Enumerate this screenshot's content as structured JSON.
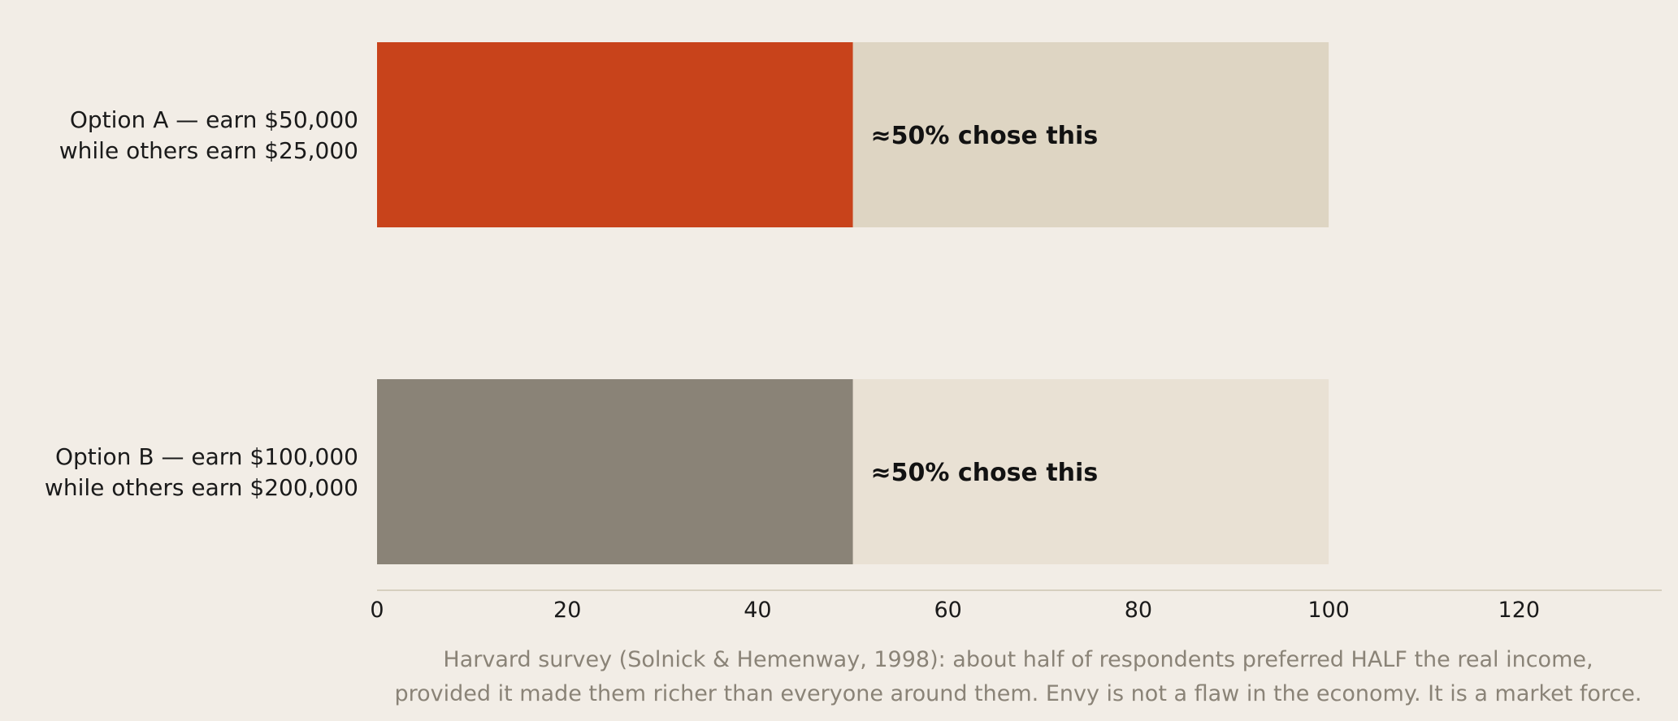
{
  "chart_data": {
    "type": "bar",
    "orientation": "horizontal",
    "categories": [
      [
        "Option A — earn $50,000",
        "while others earn $25,000"
      ],
      [
        "Option B — earn $100,000",
        "while others earn $200,000"
      ]
    ],
    "values": [
      50,
      50
    ],
    "background_values": [
      100,
      100
    ],
    "data_labels": [
      "≈50% chose this",
      "≈50% chose this"
    ],
    "colors": {
      "bar_fill": [
        "#c8431b",
        "#8a8377"
      ],
      "bar_background": [
        "#ded5c3",
        "#e9e1d4"
      ],
      "axis_line": "#d6cfbf",
      "page_background": "#f2ede6"
    },
    "xlim": [
      0,
      135
    ],
    "x_ticks": [
      0,
      20,
      40,
      60,
      80,
      100,
      120
    ],
    "grid": false,
    "caption": [
      "Harvard survey (Solnick & Hemenway, 1998): about half of respondents preferred HALF the real income,",
      "provided it made them richer than everyone around them. Envy is not a flaw in the economy. It is a market force."
    ]
  }
}
